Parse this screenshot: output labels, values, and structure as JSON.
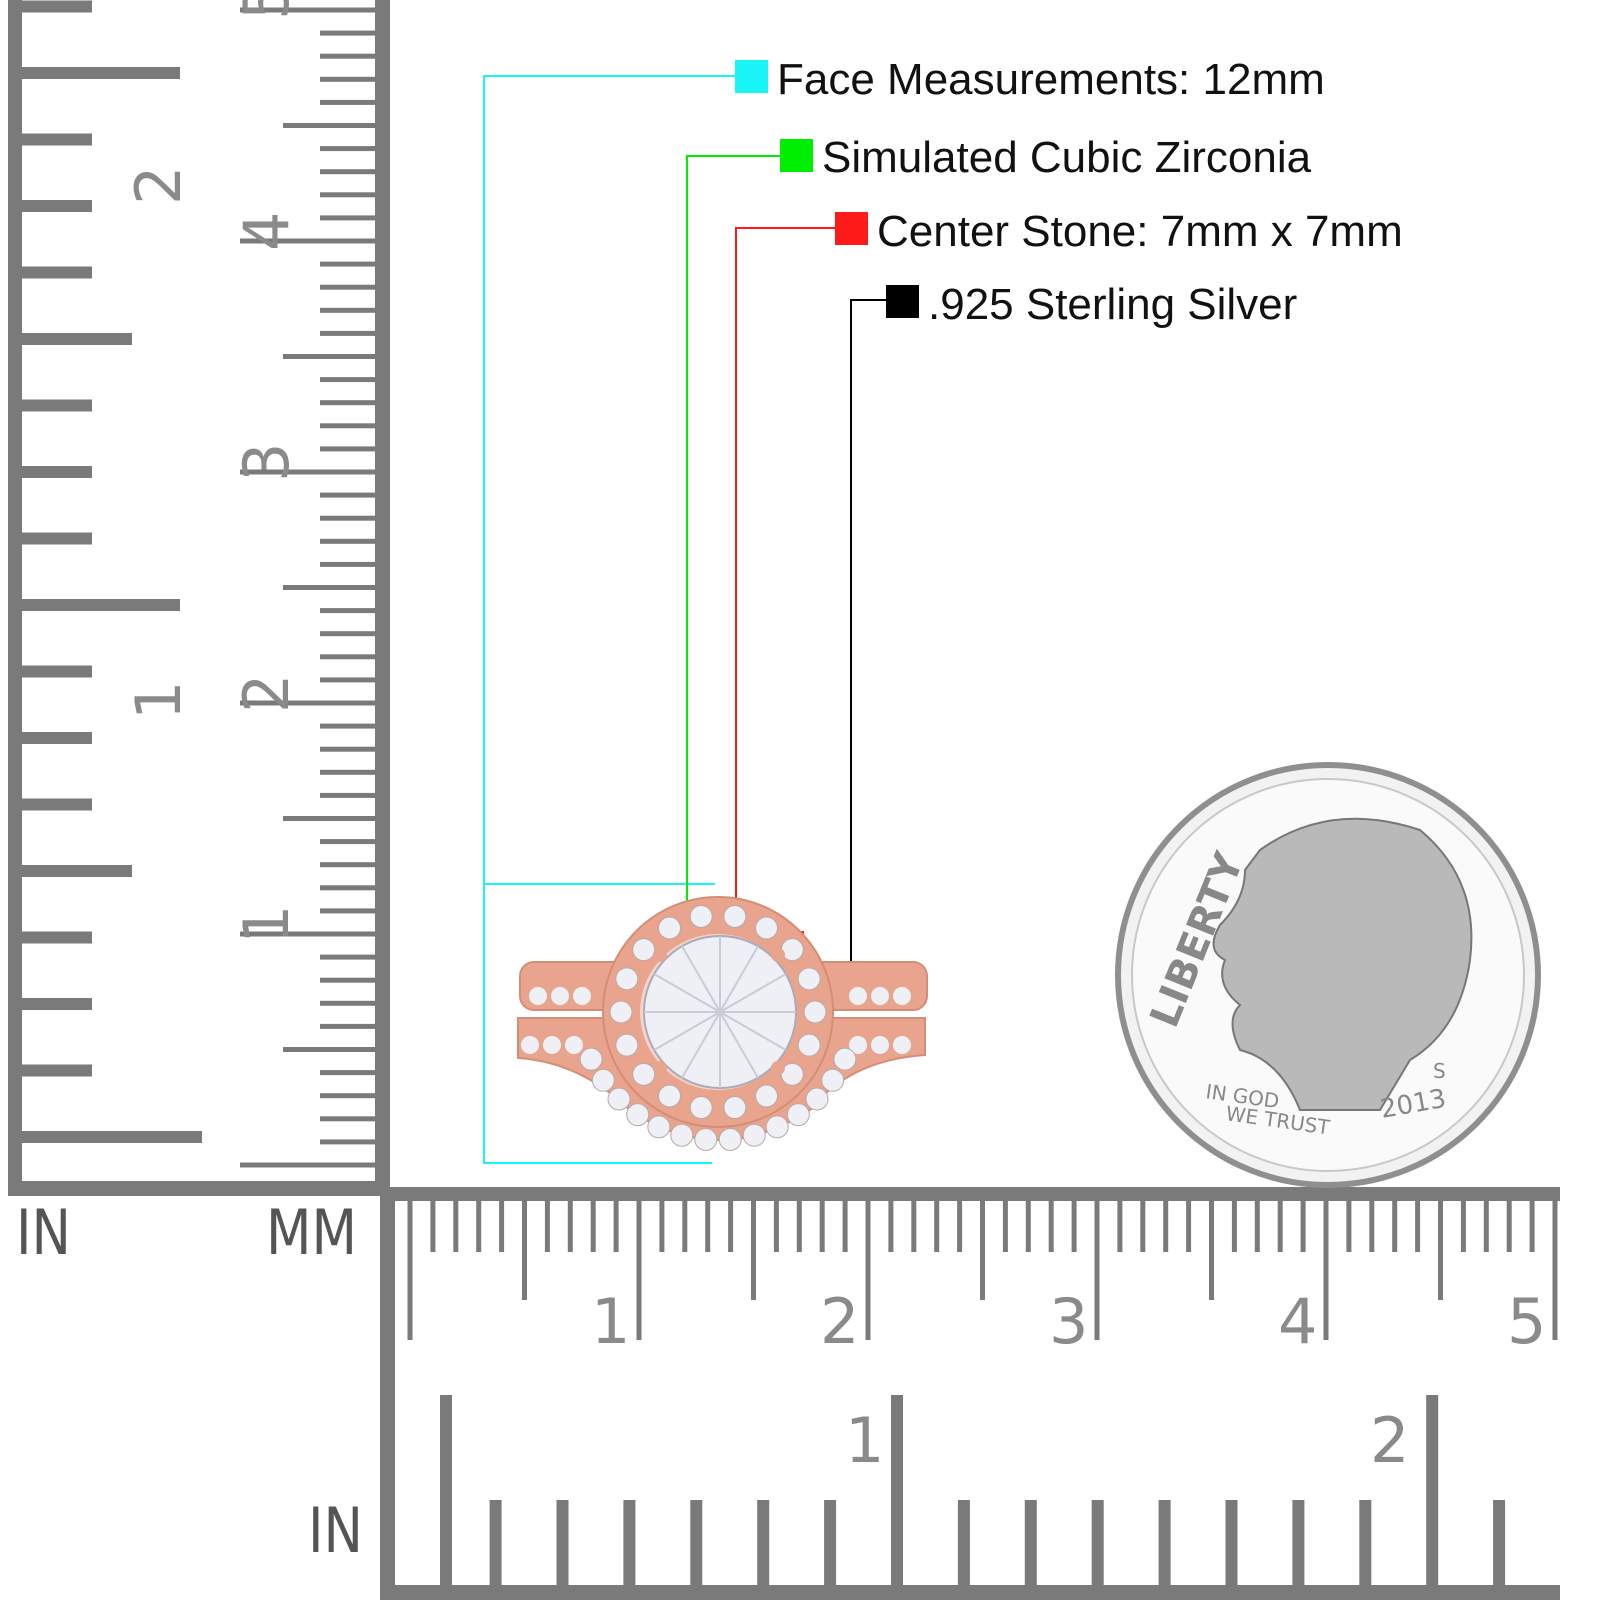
{
  "legend": [
    {
      "label": "Face Measurements: 12mm",
      "color": "#19f5f5"
    },
    {
      "label": "Simulated Cubic Zirconia",
      "color": "#00ee00"
    },
    {
      "label": "Center Stone: 7mm x 7mm",
      "color": "#ff1a1a"
    },
    {
      "label": ".925 Sterling Silver",
      "color": "#000000"
    }
  ],
  "rulers": {
    "vertical_in_label": "IN",
    "vertical_mm_label": "MM",
    "horizontal_in_label": "IN",
    "vertical_mm_numbers": [
      "1",
      "2",
      "3",
      "4",
      "5"
    ],
    "vertical_in_numbers": [
      "1",
      "2"
    ],
    "horizontal_mm_numbers": [
      "1",
      "2",
      "3",
      "4",
      "5"
    ],
    "horizontal_in_numbers": [
      "1",
      "2"
    ],
    "color": "#7a7a7a"
  },
  "ring": {
    "metal_color": "#e8a48d",
    "stone_color": "#eef0f6"
  },
  "coin": {
    "motto": "IN GOD WE TRUST",
    "word": "LIBERTY",
    "year": "2013",
    "mint_mark": "S",
    "color": "#b9b9b9"
  }
}
